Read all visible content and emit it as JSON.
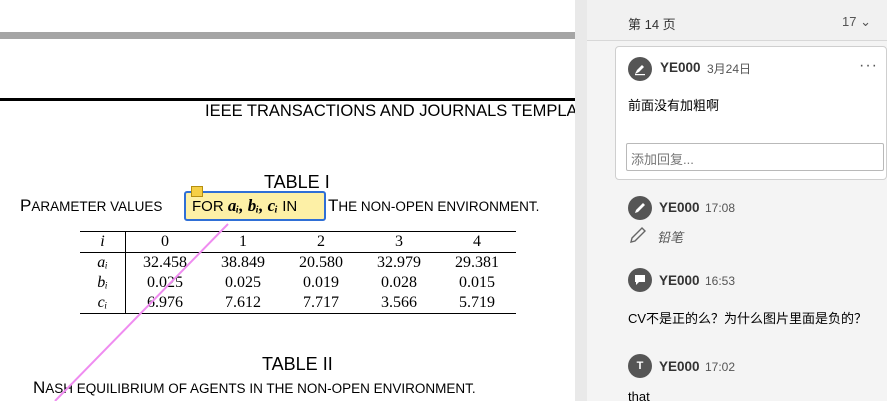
{
  "document": {
    "running_header": "IEEE TRANSACTIONS AND JOURNALS TEMPLAT",
    "table1": {
      "title": "TABLE I",
      "caption_start_P": "P",
      "caption_start_rest": "ARAMETER VALUES",
      "highlight_for": "FOR",
      "highlight_math": "aᵢ, bᵢ, cᵢ",
      "highlight_in": "IN",
      "caption_end_T": "T",
      "caption_end_rest": "HE NON-OPEN ENVIRONMENT.",
      "headers": [
        "i",
        "0",
        "1",
        "2",
        "3",
        "4"
      ],
      "rows": [
        [
          "aᵢ",
          "32.458",
          "38.849",
          "20.580",
          "32.979",
          "29.381"
        ],
        [
          "bᵢ",
          "0.025",
          "0.025",
          "0.019",
          "0.028",
          "0.015"
        ],
        [
          "cᵢ",
          "6.976",
          "7.612",
          "7.717",
          "3.566",
          "5.719"
        ]
      ]
    },
    "table2": {
      "title": "TABLE II",
      "caption_N": "N",
      "caption_rest": "ASH EQUILIBRIUM OF AGENTS IN THE NON-OPEN ENVIRONMENT."
    }
  },
  "comments_panel": {
    "page_label": "第 14 页",
    "count": "17",
    "comments": [
      {
        "icon": "highlight-icon",
        "user": "YE000",
        "time": "3月24日",
        "text": "前面没有加粗啊",
        "reply_placeholder": "添加回复..."
      },
      {
        "icon": "pencil-icon",
        "user": "YE000",
        "time": "17:08",
        "text": "铅笔"
      },
      {
        "icon": "note-icon",
        "user": "YE000",
        "time": "16:53",
        "text": "CV不是正的么？为什么图片里面是负的？"
      },
      {
        "icon": "text-icon",
        "user": "YE000",
        "time": "17:02",
        "text": "that"
      }
    ]
  },
  "colors": {
    "highlight": "#fdf0a6",
    "selection_border": "#2f6fd6",
    "pencil_stroke": "#ef8cf0",
    "avatar": "#555555"
  }
}
